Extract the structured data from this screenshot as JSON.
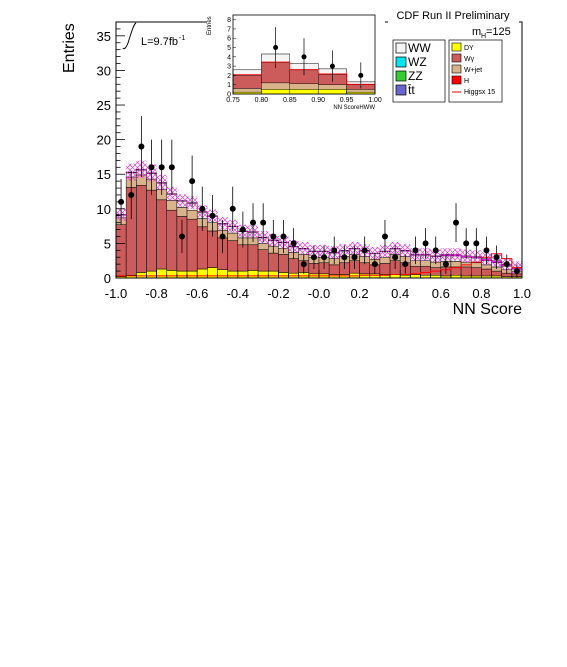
{
  "chart_data": {
    "type": "bar",
    "title": "CDF Run II Preliminary",
    "xlabel": "NN Score",
    "ylabel": "Entries",
    "luminosity": "L=9.7fb",
    "luminosity_exp": "-1",
    "mass_label": "m",
    "mass_sub": "H",
    "mass_value": "=125",
    "xlim": [
      -1.0,
      1.0
    ],
    "ylim": [
      0,
      37
    ],
    "xticks": [
      "-1.0",
      "-0.8",
      "-0.6",
      "-0.4",
      "-0.2",
      "-0.0",
      "0.2",
      "0.4",
      "0.6",
      "0.8",
      "1.0"
    ],
    "yticks": [
      "0",
      "5",
      "10",
      "15",
      "20",
      "25",
      "30",
      "35"
    ],
    "bin_width": 0.05,
    "bin_lo": [
      -1.0,
      -0.95,
      -0.9,
      -0.85,
      -0.8,
      -0.75,
      -0.7,
      -0.65,
      -0.6,
      -0.55,
      -0.5,
      -0.45,
      -0.4,
      -0.35,
      -0.3,
      -0.25,
      -0.2,
      -0.15,
      -0.1,
      -0.05,
      0.0,
      0.05,
      0.1,
      0.15,
      0.2,
      0.25,
      0.3,
      0.35,
      0.4,
      0.45,
      0.5,
      0.55,
      0.6,
      0.65,
      0.7,
      0.75,
      0.8,
      0.85,
      0.9,
      0.95
    ],
    "series": [
      {
        "name": "DY",
        "color": "#ffff00",
        "values": [
          0.2,
          0.4,
          0.8,
          1.0,
          1.3,
          1.1,
          1.0,
          1.0,
          1.3,
          1.5,
          1.2,
          1.0,
          1.0,
          1.1,
          1.0,
          1.0,
          0.8,
          0.7,
          0.8,
          0.6,
          0.6,
          0.5,
          0.5,
          0.7,
          0.6,
          0.6,
          0.5,
          0.5,
          0.4,
          0.5,
          0.4,
          0.4,
          0.3,
          0.4,
          0.3,
          0.3,
          0.3,
          0.3,
          0.2,
          0.2
        ]
      },
      {
        "name": "Wγ",
        "color": "#cc5b5b",
        "values": [
          7.5,
          12.7,
          12.6,
          11.7,
          10.0,
          8.7,
          7.9,
          7.5,
          6.1,
          5.3,
          4.6,
          4.4,
          3.8,
          3.7,
          3.1,
          2.6,
          2.6,
          2.1,
          1.7,
          1.5,
          1.6,
          1.4,
          1.7,
          1.8,
          1.6,
          1.3,
          1.6,
          2.0,
          1.8,
          1.2,
          1.3,
          1.1,
          1.3,
          1.2,
          1.3,
          1.2,
          1.0,
          0.7,
          0.5,
          0.4
        ]
      },
      {
        "name": "W+jet",
        "color": "#d9b38c",
        "values": [
          1.0,
          1.5,
          1.5,
          1.6,
          1.5,
          1.4,
          1.3,
          1.3,
          1.2,
          1.2,
          1.1,
          1.1,
          1.0,
          1.0,
          0.9,
          1.0,
          0.9,
          0.9,
          0.9,
          0.9,
          0.8,
          0.9,
          0.9,
          0.9,
          0.9,
          0.8,
          0.9,
          0.9,
          0.9,
          0.8,
          0.8,
          0.8,
          0.8,
          0.8,
          0.7,
          0.7,
          0.6,
          0.6,
          0.5,
          0.4
        ]
      },
      {
        "name": "WW",
        "color": "#f4f4f4",
        "values": [
          0.4,
          0.6,
          0.7,
          0.8,
          0.9,
          0.9,
          0.9,
          1.0,
          0.9,
          0.9,
          0.9,
          0.9,
          0.9,
          0.8,
          0.8,
          0.8,
          0.8,
          0.8,
          0.8,
          0.8,
          0.8,
          0.8,
          0.8,
          0.8,
          0.8,
          0.8,
          0.8,
          0.8,
          0.8,
          0.8,
          0.8,
          0.8,
          0.8,
          0.8,
          0.7,
          0.7,
          0.6,
          0.6,
          0.5,
          0.3
        ]
      },
      {
        "name": "H",
        "color": "#ff00ff",
        "values": [
          0.1,
          0.1,
          0.1,
          0.1,
          0.1,
          0.1,
          0.1,
          0.1,
          0.1,
          0.1,
          0.1,
          0.1,
          0.1,
          0.1,
          0.1,
          0.1,
          0.1,
          0.1,
          0.1,
          0.1,
          0.1,
          0.1,
          0.1,
          0.1,
          0.1,
          0.1,
          0.1,
          0.1,
          0.1,
          0.1,
          0.1,
          0.1,
          0.2,
          0.2,
          0.2,
          0.2,
          0.3,
          0.3,
          0.3,
          0.2
        ]
      }
    ],
    "data_points": {
      "x": [
        -0.975,
        -0.925,
        -0.875,
        -0.825,
        -0.775,
        -0.725,
        -0.675,
        -0.625,
        -0.575,
        -0.525,
        -0.475,
        -0.425,
        -0.375,
        -0.325,
        -0.275,
        -0.225,
        -0.175,
        -0.125,
        -0.075,
        -0.025,
        0.025,
        0.075,
        0.125,
        0.175,
        0.225,
        0.275,
        0.325,
        0.375,
        0.425,
        0.475,
        0.525,
        0.575,
        0.625,
        0.675,
        0.725,
        0.775,
        0.825,
        0.875,
        0.925,
        0.975
      ],
      "y": [
        11,
        12,
        19,
        16,
        16,
        16,
        6,
        14,
        10,
        9,
        6,
        10,
        7,
        8,
        8,
        6,
        6,
        5,
        2,
        3,
        3,
        4,
        3,
        3,
        4,
        2,
        6,
        3,
        2,
        4,
        5,
        4,
        2,
        8,
        5,
        5,
        4,
        3,
        2,
        1
      ],
      "err": [
        3.3,
        3.5,
        4.4,
        4.0,
        4.0,
        4.0,
        2.4,
        3.7,
        3.2,
        3.0,
        2.4,
        3.2,
        2.6,
        2.8,
        2.8,
        2.4,
        2.4,
        2.2,
        1.4,
        1.7,
        1.7,
        2.0,
        1.7,
        1.7,
        2.0,
        1.4,
        2.4,
        1.7,
        1.4,
        2.0,
        2.2,
        2.0,
        1.4,
        2.8,
        2.2,
        2.2,
        2.0,
        1.7,
        1.4,
        1.0
      ]
    },
    "higgs_x15": [
      0.3,
      0.3,
      0.3,
      0.3,
      0.3,
      0.3,
      0.3,
      0.3,
      0.3,
      0.3,
      0.3,
      0.3,
      0.3,
      0.3,
      0.3,
      0.3,
      0.3,
      0.3,
      0.3,
      0.3,
      0.3,
      0.3,
      0.3,
      0.3,
      0.4,
      0.4,
      0.4,
      0.5,
      0.5,
      0.6,
      0.8,
      1.0,
      1.2,
      1.5,
      1.9,
      2.3,
      3.0,
      3.5,
      2.8,
      1.5
    ],
    "legend": {
      "left": [
        {
          "name": "WW",
          "color": "#f4f4f4"
        },
        {
          "name": "WZ",
          "color": "#00e5ee"
        },
        {
          "name": "ZZ",
          "color": "#33cc33"
        },
        {
          "name": "t̄t",
          "color": "#6666cc"
        }
      ],
      "right": [
        {
          "name": "DY",
          "color": "#ffff00"
        },
        {
          "name": "Wγ",
          "color": "#cc5b5b"
        },
        {
          "name": "W+jet",
          "color": "#d9b38c"
        },
        {
          "name": "H",
          "color": "#ff0000"
        },
        {
          "name": "Higgsx 15",
          "color": "#ff0000",
          "line": true
        }
      ]
    },
    "inset": {
      "xlabel": "NN ScoreHWW",
      "ylabel": "Entries",
      "xlim": [
        0.75,
        1.0
      ],
      "ylim": [
        0,
        8.5
      ],
      "xticks": [
        "0.75",
        "0.80",
        "0.85",
        "0.90",
        "0.95",
        "1.00"
      ],
      "yticks": [
        "0",
        "1",
        "2",
        "3",
        "4",
        "5",
        "6",
        "7",
        "8"
      ],
      "bins": [
        {
          "lo": 0.75,
          "hi": 0.8,
          "total": 2.6,
          "stack": [
            0.6,
            1.4,
            0.4,
            0.2
          ]
        },
        {
          "lo": 0.8,
          "hi": 0.85,
          "total": 4.3,
          "stack": [
            0.9,
            2.2,
            0.7,
            0.5
          ]
        },
        {
          "lo": 0.85,
          "hi": 0.9,
          "total": 3.3,
          "stack": [
            0.7,
            1.5,
            0.6,
            0.5
          ]
        },
        {
          "lo": 0.9,
          "hi": 0.95,
          "total": 2.7,
          "stack": [
            0.6,
            1.1,
            0.5,
            0.5
          ]
        },
        {
          "lo": 0.95,
          "hi": 1.0,
          "total": 1.3,
          "stack": [
            0.3,
            0.5,
            0.3,
            0.2
          ]
        }
      ],
      "data_points": {
        "x": [
          0.825,
          0.875,
          0.925,
          0.975
        ],
        "y": [
          5.0,
          4.0,
          3.0,
          2.0
        ],
        "err": [
          2.2,
          2.0,
          1.7,
          1.4
        ]
      }
    }
  }
}
